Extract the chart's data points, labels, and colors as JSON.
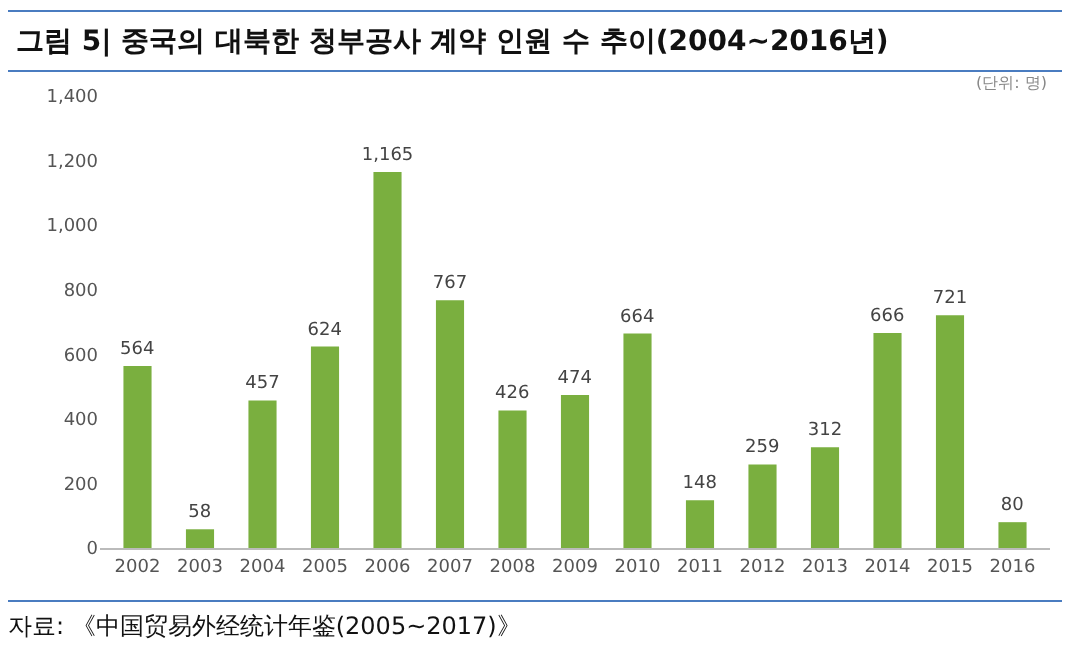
{
  "chart_data": {
    "type": "bar",
    "title": "그림 5| 중국의 대북한 청부공사 계약 인원 수 추이(2004~2016년)",
    "categories": [
      "2002",
      "2003",
      "2004",
      "2005",
      "2006",
      "2007",
      "2008",
      "2009",
      "2010",
      "2011",
      "2012",
      "2013",
      "2014",
      "2015",
      "2016"
    ],
    "values": [
      564,
      58,
      457,
      624,
      1165,
      767,
      426,
      474,
      664,
      148,
      259,
      312,
      666,
      721,
      80
    ],
    "color": "#7aaf3f",
    "ylim": [
      0,
      1400
    ],
    "yticks": [
      0,
      200,
      400,
      600,
      800,
      {
        "value": 1000,
        "label": "1,000"
      },
      {
        "value": 1200,
        "label": "1,200"
      },
      {
        "value": 1400,
        "label": "1,400"
      }
    ],
    "value_labels": [
      "564",
      "58",
      "457",
      "624",
      "1,165",
      "767",
      "426",
      "474",
      "664",
      "148",
      "259",
      "312",
      "666",
      "721",
      "80"
    ],
    "grid": false,
    "annotations": [
      "(단위: 명)",
      "자료: 《中国贸易外经统计年鉴(2005~2017)》"
    ]
  }
}
